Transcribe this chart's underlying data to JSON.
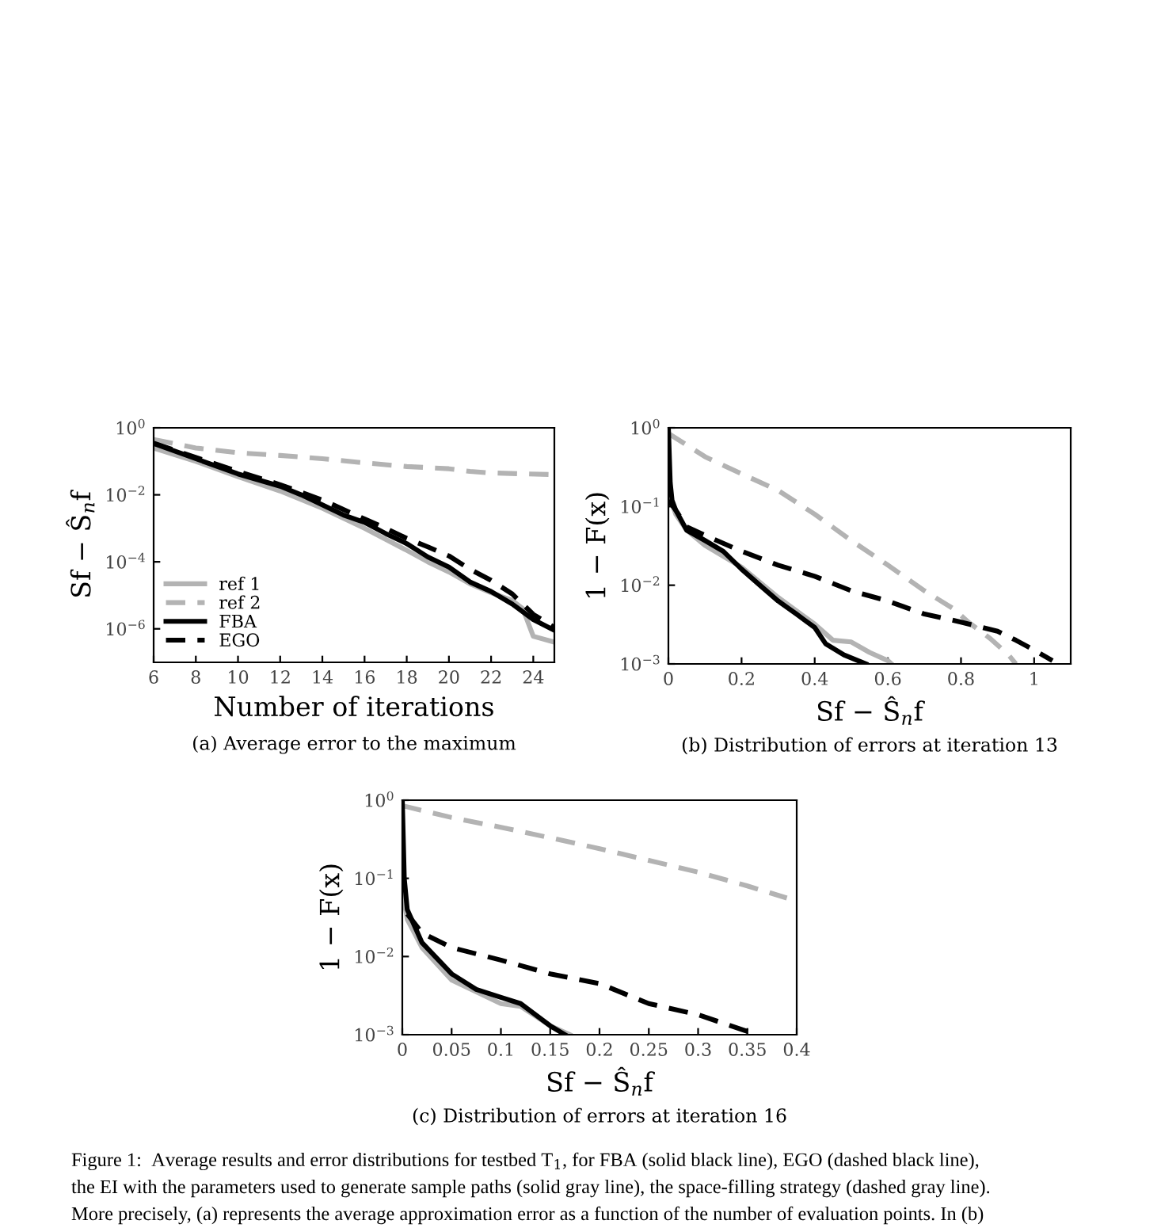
{
  "chart_data": [
    {
      "type": "line",
      "xlabel": "Number of iterations",
      "ylabel": "Sf − Ŝ$_{n}$f",
      "log": "y",
      "xlim": [
        6,
        25
      ],
      "ylim": [
        1e-07,
        1
      ],
      "xticks": [
        6,
        8,
        10,
        12,
        14,
        16,
        18,
        20,
        22,
        24
      ],
      "yticks": [
        {
          "value": 1,
          "label": "10$^{0}$"
        },
        {
          "value": 0.01,
          "label": "10$^{−2}$"
        },
        {
          "value": 0.0001,
          "label": "10$^{−4}$"
        },
        {
          "value": 1e-06,
          "label": "10$^{−6}$"
        }
      ],
      "legend": "bottom left",
      "grid": false,
      "annotations": [
        "(a) Average error to the maximum"
      ],
      "series": [
        {
          "name": "ref 1",
          "color": "#b3b3b3",
          "line_style": "solid",
          "x": [
            6,
            8,
            10,
            12,
            14,
            16,
            18,
            19,
            20,
            21,
            22,
            23,
            23.5,
            24,
            25
          ],
          "values": [
            0.25,
            0.1,
            0.035,
            0.013,
            0.004,
            0.001,
            0.00022,
            0.0001,
            5e-05,
            2.2e-05,
            1.2e-05,
            7e-06,
            4e-06,
            6e-07,
            4e-07
          ]
        },
        {
          "name": "ref 2",
          "color": "#b3b3b3",
          "line_style": "dashed",
          "x": [
            6,
            8,
            10,
            12,
            14,
            16,
            18,
            20,
            21,
            22,
            25
          ],
          "values": [
            0.45,
            0.25,
            0.18,
            0.15,
            0.12,
            0.09,
            0.07,
            0.06,
            0.05,
            0.045,
            0.04
          ]
        },
        {
          "name": "FBA",
          "color": "#000000",
          "line_style": "solid",
          "x": [
            6,
            8,
            10,
            12,
            13,
            14,
            15,
            16,
            17,
            18,
            19,
            20,
            21,
            22,
            23,
            24,
            25
          ],
          "values": [
            0.34,
            0.12,
            0.042,
            0.018,
            0.01,
            0.005,
            0.0025,
            0.0015,
            0.0007,
            0.00035,
            0.00014,
            7e-05,
            2.5e-05,
            1.3e-05,
            5.5e-06,
            1.9e-06,
            9e-07
          ]
        },
        {
          "name": "EGO",
          "color": "#000000",
          "line_style": "dashed",
          "x": [
            6,
            8,
            10,
            12,
            14,
            16,
            17,
            18,
            19,
            20,
            21,
            22,
            23,
            24,
            25
          ],
          "values": [
            0.35,
            0.13,
            0.05,
            0.02,
            0.007,
            0.0019,
            0.001,
            0.0005,
            0.00028,
            0.00015,
            6e-05,
            2.8e-05,
            1.1e-05,
            2.7e-06,
            1.1e-06
          ]
        }
      ]
    },
    {
      "type": "line",
      "xlabel": "Sf − Ŝ$_{n}$f",
      "ylabel": "1 − F(x)",
      "log": "y",
      "xlim": [
        0,
        1.1
      ],
      "ylim": [
        0.001,
        1
      ],
      "xticks": [
        0,
        0.2,
        0.4,
        0.6,
        0.8,
        1
      ],
      "yticks": [
        {
          "value": 1,
          "label": "10$^{0}$"
        },
        {
          "value": 0.1,
          "label": "10$^{−1}$"
        },
        {
          "value": 0.01,
          "label": "10$^{−2}$"
        },
        {
          "value": 0.001,
          "label": "10$^{−3}$"
        }
      ],
      "grid": false,
      "annotations": [
        "(b) Distribution of errors at iteration 13"
      ],
      "series": [
        {
          "color": "#b3b3b3",
          "line_style": "solid",
          "x": [
            0,
            0.02,
            0.05,
            0.1,
            0.2,
            0.3,
            0.4,
            0.45,
            0.5,
            0.55,
            0.6,
            0.61
          ],
          "values": [
            0.15,
            0.08,
            0.05,
            0.032,
            0.017,
            0.007,
            0.0032,
            0.002,
            0.0019,
            0.0014,
            0.0011,
            0.001
          ]
        },
        {
          "color": "#b3b3b3",
          "line_style": "dashed",
          "x": [
            0,
            0.1,
            0.2,
            0.3,
            0.4,
            0.5,
            0.6,
            0.7,
            0.78,
            0.82,
            0.88,
            0.93,
            0.95
          ],
          "values": [
            0.85,
            0.43,
            0.26,
            0.16,
            0.08,
            0.037,
            0.018,
            0.0085,
            0.005,
            0.0034,
            0.0021,
            0.0013,
            0.001
          ]
        },
        {
          "color": "#000000",
          "line_style": "solid",
          "x": [
            0,
            0.005,
            0.01,
            0.02,
            0.05,
            0.1,
            0.15,
            0.2,
            0.25,
            0.3,
            0.35,
            0.4,
            0.43,
            0.48,
            0.54
          ],
          "values": [
            1,
            0.2,
            0.12,
            0.09,
            0.05,
            0.037,
            0.027,
            0.016,
            0.01,
            0.0063,
            0.0043,
            0.0029,
            0.0018,
            0.0013,
            0.001
          ]
        },
        {
          "color": "#000000",
          "line_style": "dashed",
          "x": [
            0,
            0.02,
            0.05,
            0.1,
            0.2,
            0.3,
            0.4,
            0.5,
            0.6,
            0.7,
            0.8,
            0.9,
            0.95,
            1,
            1.05
          ],
          "values": [
            0.12,
            0.09,
            0.055,
            0.043,
            0.027,
            0.018,
            0.013,
            0.0085,
            0.0063,
            0.0043,
            0.0034,
            0.0026,
            0.002,
            0.0015,
            0.0011
          ]
        }
      ]
    },
    {
      "type": "line",
      "xlabel": "Sf − Ŝ$_{n}$f",
      "ylabel": "1 − F(x)",
      "log": "y",
      "xlim": [
        0,
        0.4
      ],
      "ylim": [
        0.001,
        1
      ],
      "xticks": [
        0,
        0.05,
        0.1,
        0.15,
        0.2,
        0.25,
        0.3,
        0.35,
        0.4
      ],
      "yticks": [
        {
          "value": 1,
          "label": "10$^{0}$"
        },
        {
          "value": 0.1,
          "label": "10$^{−1}$"
        },
        {
          "value": 0.01,
          "label": "10$^{−2}$"
        },
        {
          "value": 0.001,
          "label": "10$^{−3}$"
        }
      ],
      "grid": false,
      "annotations": [
        "(c) Distribution of errors at iteration 16",
        "Figure 1:  Average results and error distributions for testbed T$_{1}$, for FBA (solid black line), EGO (dashed black line),",
        "the EI with the parameters used to generate sample paths (solid gray line), the space-filling strategy (dashed gray line).",
        "More precisely, (a) represents the average approximation error as a function of the number of evaluation points. In (b)"
      ],
      "series": [
        {
          "color": "#b3b3b3",
          "line_style": "solid",
          "x": [
            0,
            0.005,
            0.02,
            0.05,
            0.1,
            0.12,
            0.15,
            0.17
          ],
          "values": [
            0.07,
            0.03,
            0.013,
            0.005,
            0.0025,
            0.0023,
            0.0013,
            0.001
          ]
        },
        {
          "color": "#b3b3b3",
          "line_style": "dashed",
          "x": [
            0,
            0.05,
            0.1,
            0.15,
            0.2,
            0.25,
            0.3,
            0.35,
            0.39
          ],
          "values": [
            0.85,
            0.6,
            0.45,
            0.33,
            0.24,
            0.17,
            0.12,
            0.08,
            0.056
          ]
        },
        {
          "color": "#000000",
          "line_style": "solid",
          "x": [
            0,
            0.002,
            0.005,
            0.02,
            0.05,
            0.075,
            0.1,
            0.12,
            0.15,
            0.165
          ],
          "values": [
            1,
            0.1,
            0.04,
            0.015,
            0.006,
            0.0038,
            0.003,
            0.0025,
            0.0013,
            0.001
          ]
        },
        {
          "color": "#000000",
          "line_style": "dashed",
          "x": [
            0.005,
            0.02,
            0.05,
            0.1,
            0.15,
            0.2,
            0.25,
            0.3,
            0.35,
            0.36
          ],
          "values": [
            0.035,
            0.02,
            0.013,
            0.009,
            0.006,
            0.0045,
            0.0025,
            0.0018,
            0.0011,
            0.001
          ]
        }
      ]
    }
  ]
}
